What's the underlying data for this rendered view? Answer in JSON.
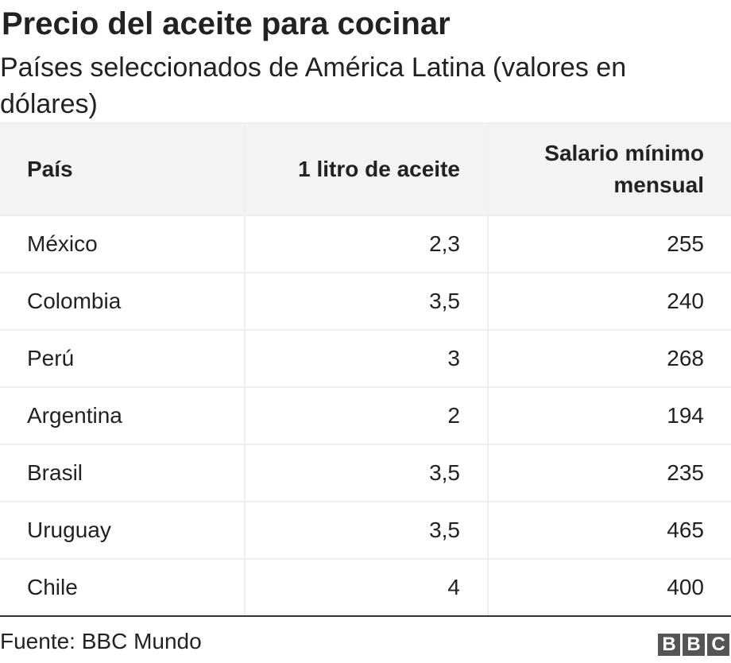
{
  "header": {
    "title": "Precio del aceite para cocinar",
    "subtitle": "Países seleccionados de América Latina (valores en dólares)"
  },
  "table": {
    "columns": [
      "País",
      "1 litro de aceite",
      "Salario mínimo mensual"
    ],
    "rows": [
      {
        "country": "México",
        "oil": "2,3",
        "wage": "255"
      },
      {
        "country": "Colombia",
        "oil": "3,5",
        "wage": "240"
      },
      {
        "country": "Perú",
        "oil": "3",
        "wage": "268"
      },
      {
        "country": "Argentina",
        "oil": "2",
        "wage": "194"
      },
      {
        "country": "Brasil",
        "oil": "3,5",
        "wage": "235"
      },
      {
        "country": "Uruguay",
        "oil": "3,5",
        "wage": "465"
      },
      {
        "country": "Chile",
        "oil": "4",
        "wage": "400"
      }
    ]
  },
  "footer": {
    "source": "Fuente: BBC Mundo",
    "logo": [
      "B",
      "B",
      "C"
    ]
  },
  "chart_data": {
    "type": "table",
    "title": "Precio del aceite para cocinar",
    "subtitle": "Países seleccionados de América Latina (valores en dólares)",
    "columns": [
      "País",
      "1 litro de aceite",
      "Salario mínimo mensual"
    ],
    "categories": [
      "México",
      "Colombia",
      "Perú",
      "Argentina",
      "Brasil",
      "Uruguay",
      "Chile"
    ],
    "series": [
      {
        "name": "1 litro de aceite",
        "values": [
          2.3,
          3.5,
          3,
          2,
          3.5,
          3.5,
          4
        ]
      },
      {
        "name": "Salario mínimo mensual",
        "values": [
          255,
          240,
          268,
          194,
          235,
          465,
          400
        ]
      }
    ]
  }
}
